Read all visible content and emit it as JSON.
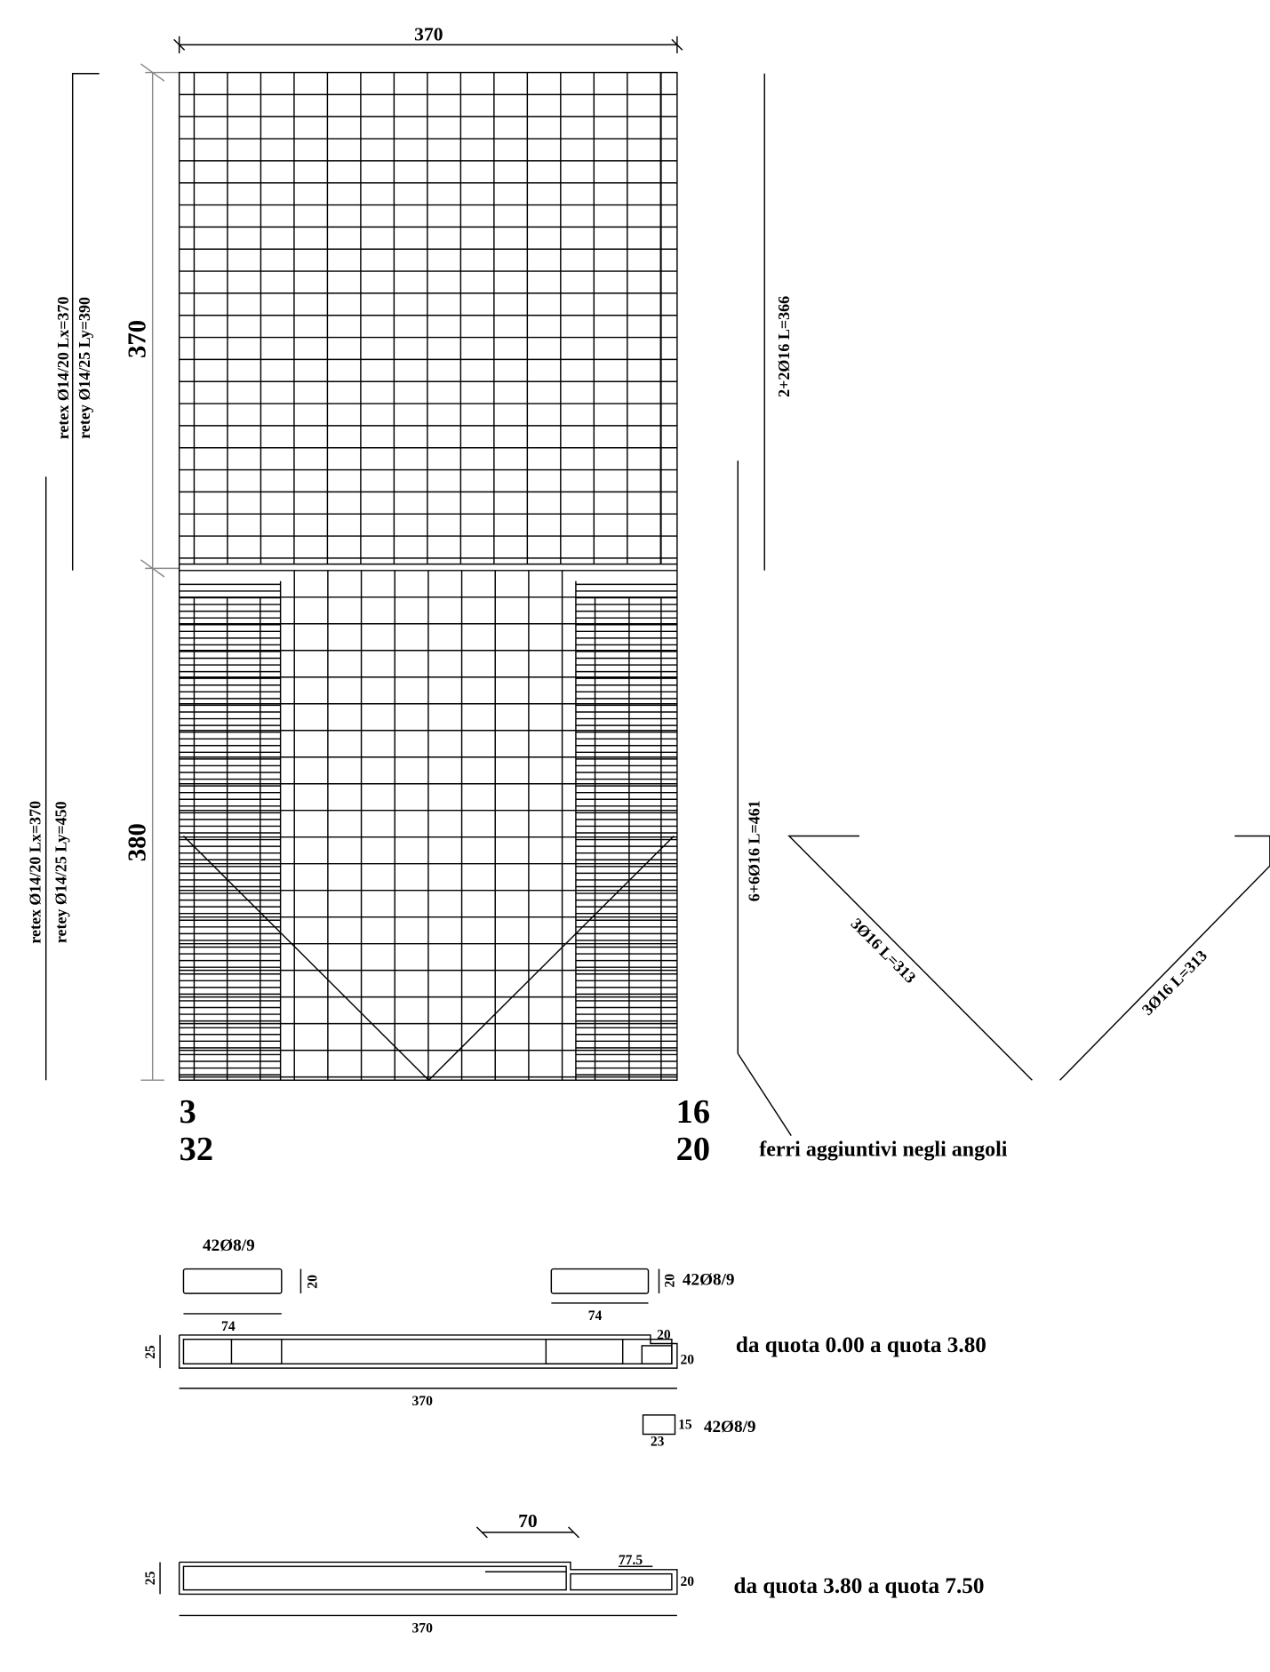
{
  "plan": {
    "top_dim": "370",
    "upper_height": "370",
    "lower_height": "380",
    "upper_mesh": [
      "retex Ø14/20 Lx=370",
      "retey Ø14/25 Ly=390"
    ],
    "lower_mesh": [
      "retex Ø14/20 Lx=370",
      "retey Ø14/25 Ly=450"
    ],
    "bar_upper": "2+2Ø16 L=366",
    "bar_lower": "6+6Ø16 L=461",
    "diag_left": "3Ø16 L=313",
    "diag_right": "3Ø16 L=313",
    "left_marks": [
      "3",
      "32"
    ],
    "right_marks": [
      "16",
      "20"
    ],
    "corner_note": "ferri aggiuntivi negli angoli"
  },
  "section1": {
    "stirrup_left": "42Ø8/9",
    "stirrup_left_h": "20",
    "stirrup_left_w": "74",
    "stirrup_right": "42Ø8/9",
    "stirrup_right_h": "20",
    "stirrup_right_w": "74",
    "thickness": "25",
    "step_w": "20",
    "step_h": "20",
    "length": "370",
    "title": "da quota 0.00 a quota 3.80",
    "tie_h": "15",
    "tie_w": "23",
    "tie": "42Ø8/9"
  },
  "section2": {
    "dim": "70",
    "step_w": "77.5",
    "thickness": "25",
    "step_h": "20",
    "length": "370",
    "title": "da quota 3.80 a quota 7.50"
  }
}
